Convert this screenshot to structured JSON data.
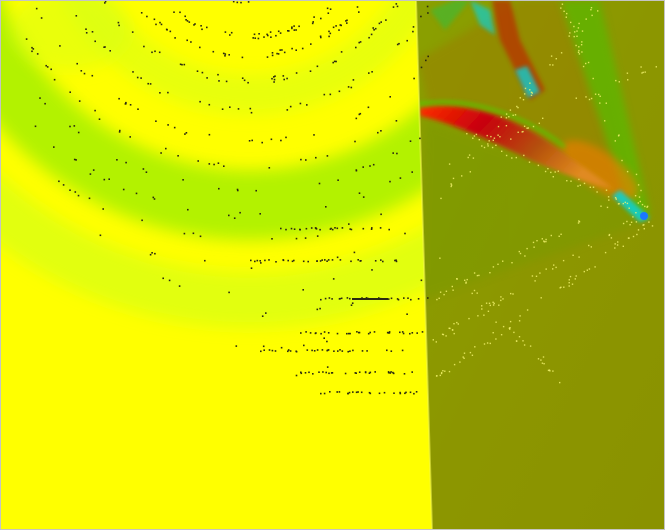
{
  "scene": {
    "kind": "simulation-field-visualization",
    "text": "",
    "palette": {
      "background_left": "#ffff00",
      "background_right": "#8c9600",
      "wave_green": "#a6f000",
      "wave_lime": "#d6ff18",
      "seam": "#ffff60",
      "hot_red": "#c8000a",
      "hot_orange": "#ff7a00",
      "cool_cyan": "#10d0d0",
      "tip_blue": "#1a78ff",
      "particle_dark": "#2a2a10",
      "particle_light": "#f0f06a",
      "frame": "#c4c4c4"
    }
  }
}
